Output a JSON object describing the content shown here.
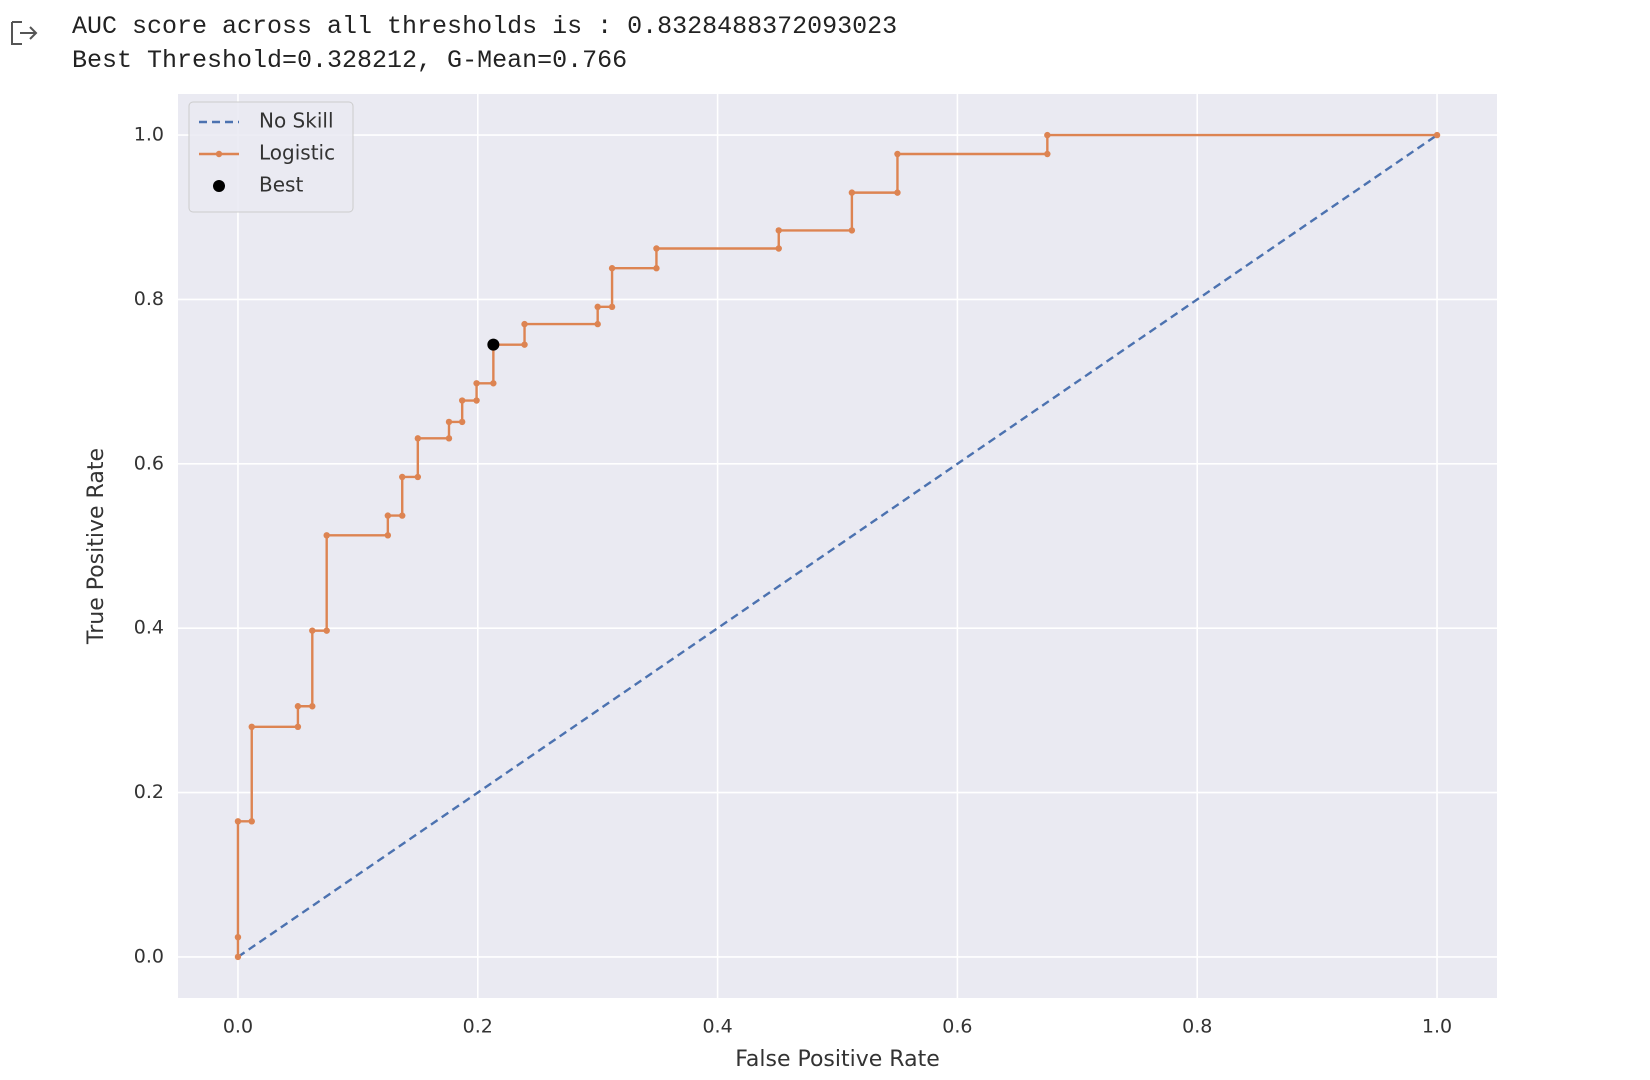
{
  "output": {
    "lines": [
      "AUC score across all thresholds is : 0.8328488372093023",
      "Best Threshold=0.328212, G-Mean=0.766"
    ]
  },
  "chart_data": {
    "type": "line",
    "xlabel": "False Positive Rate",
    "ylabel": "True Positive Rate",
    "xlim": [
      -0.05,
      1.05
    ],
    "ylim": [
      -0.05,
      1.05
    ],
    "xticks": [
      {
        "value": 0,
        "label": "0.0"
      },
      0.2,
      0.4,
      0.6,
      0.8,
      {
        "value": 1,
        "label": "1.0"
      }
    ],
    "yticks": [
      {
        "value": 0,
        "label": "0.0"
      },
      0.2,
      0.4,
      0.6,
      0.8,
      {
        "value": 1,
        "label": "1.0"
      }
    ],
    "grid": true,
    "legend": "upper left",
    "series": [
      {
        "name": "No Skill",
        "color": "#4c72b0",
        "style": "dashed",
        "x": [
          0,
          1
        ],
        "values": [
          0,
          1
        ]
      },
      {
        "name": "Logistic",
        "color": "#dd8452",
        "style": "line-markers",
        "x": [
          0,
          0,
          0,
          0.0115,
          0.0115,
          0.05,
          0.05,
          0.062,
          0.062,
          0.074,
          0.074,
          0.125,
          0.125,
          0.137,
          0.137,
          0.15,
          0.15,
          0.176,
          0.176,
          0.187,
          0.187,
          0.199,
          0.199,
          0.213,
          0.213,
          0.239,
          0.239,
          0.3,
          0.3,
          0.312,
          0.312,
          0.349,
          0.349,
          0.451,
          0.451,
          0.512,
          0.512,
          0.55,
          0.55,
          0.675,
          0.675,
          1
        ],
        "values": [
          0,
          0.024,
          0.165,
          0.165,
          0.28,
          0.28,
          0.305,
          0.305,
          0.397,
          0.397,
          0.513,
          0.513,
          0.537,
          0.537,
          0.584,
          0.584,
          0.631,
          0.631,
          0.651,
          0.651,
          0.677,
          0.677,
          0.698,
          0.698,
          0.745,
          0.745,
          0.77,
          0.77,
          0.791,
          0.791,
          0.838,
          0.838,
          0.862,
          0.862,
          0.884,
          0.884,
          0.93,
          0.93,
          0.977,
          0.977,
          1.0,
          1.0
        ]
      },
      {
        "name": "Best",
        "color": "#000000",
        "style": "point",
        "x": [
          0.213
        ],
        "values": [
          0.745
        ]
      }
    ]
  }
}
